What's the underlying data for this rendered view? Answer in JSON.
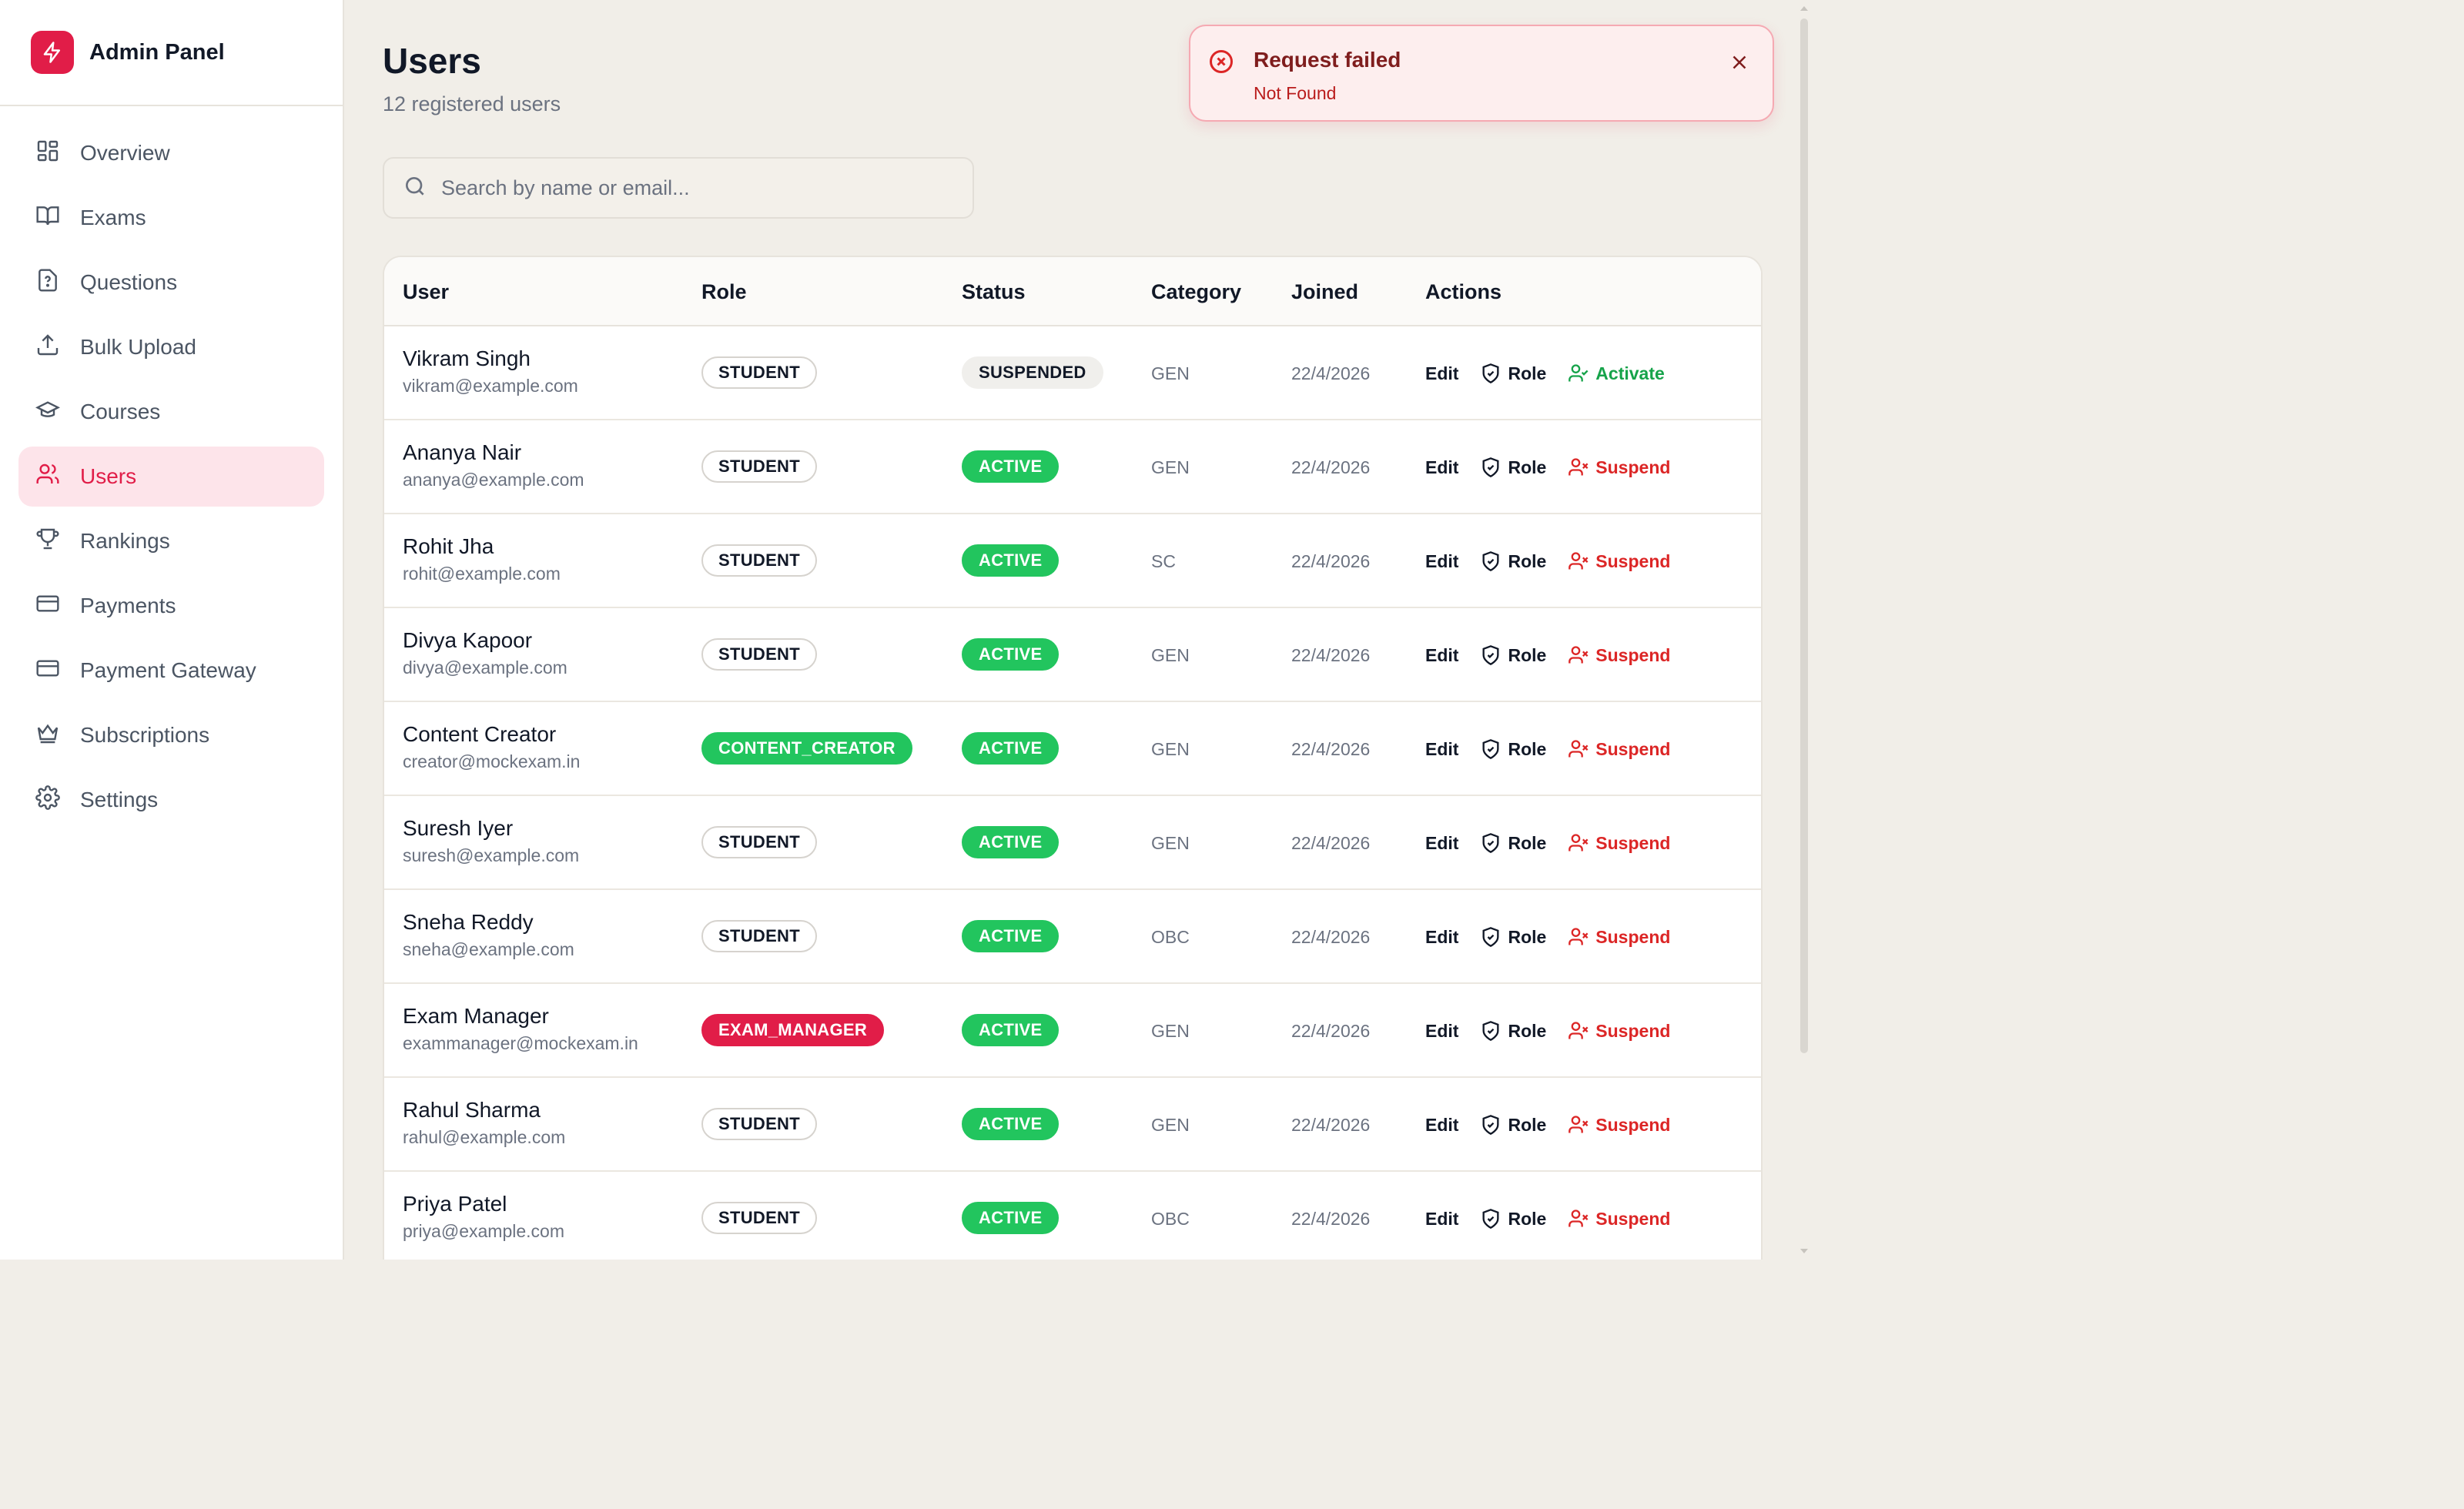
{
  "app": {
    "title": "Admin Panel"
  },
  "colors": {
    "accent": "#e11d48",
    "active_badge": "#22c55e",
    "suspend": "#dc2626",
    "activate": "#16a34a",
    "background": "#f1eee8"
  },
  "sidebar": {
    "items": [
      {
        "label": "Overview",
        "icon": "layout-grid-icon"
      },
      {
        "label": "Exams",
        "icon": "book-open-icon"
      },
      {
        "label": "Questions",
        "icon": "file-question-icon"
      },
      {
        "label": "Bulk Upload",
        "icon": "upload-icon"
      },
      {
        "label": "Courses",
        "icon": "graduation-cap-icon"
      },
      {
        "label": "Users",
        "icon": "users-icon",
        "active": true
      },
      {
        "label": "Rankings",
        "icon": "trophy-icon"
      },
      {
        "label": "Payments",
        "icon": "credit-card-icon"
      },
      {
        "label": "Payment Gateway",
        "icon": "credit-card-icon"
      },
      {
        "label": "Subscriptions",
        "icon": "crown-icon"
      },
      {
        "label": "Settings",
        "icon": "gear-icon"
      }
    ]
  },
  "page": {
    "title": "Users",
    "subtitle": "12 registered users"
  },
  "search": {
    "placeholder": "Search by name or email..."
  },
  "table": {
    "headers": {
      "user": "User",
      "role": "Role",
      "status": "Status",
      "category": "Category",
      "joined": "Joined",
      "actions": "Actions"
    },
    "rows": [
      {
        "name": "Vikram Singh",
        "email": "vikram@example.com",
        "role": "STUDENT",
        "role_style": "outline",
        "status": "SUSPENDED",
        "status_style": "grey",
        "category": "GEN",
        "joined": "22/4/2026",
        "edit": "Edit",
        "role_action": "Role",
        "toggle": "Activate",
        "toggle_style": "activate"
      },
      {
        "name": "Ananya Nair",
        "email": "ananya@example.com",
        "role": "STUDENT",
        "role_style": "outline",
        "status": "ACTIVE",
        "status_style": "green",
        "category": "GEN",
        "joined": "22/4/2026",
        "edit": "Edit",
        "role_action": "Role",
        "toggle": "Suspend",
        "toggle_style": "suspend"
      },
      {
        "name": "Rohit Jha",
        "email": "rohit@example.com",
        "role": "STUDENT",
        "role_style": "outline",
        "status": "ACTIVE",
        "status_style": "green",
        "category": "SC",
        "joined": "22/4/2026",
        "edit": "Edit",
        "role_action": "Role",
        "toggle": "Suspend",
        "toggle_style": "suspend"
      },
      {
        "name": "Divya Kapoor",
        "email": "divya@example.com",
        "role": "STUDENT",
        "role_style": "outline",
        "status": "ACTIVE",
        "status_style": "green",
        "category": "GEN",
        "joined": "22/4/2026",
        "edit": "Edit",
        "role_action": "Role",
        "toggle": "Suspend",
        "toggle_style": "suspend"
      },
      {
        "name": "Content Creator",
        "email": "creator@mockexam.in",
        "role": "CONTENT_CREATOR",
        "role_style": "green",
        "status": "ACTIVE",
        "status_style": "green",
        "category": "GEN",
        "joined": "22/4/2026",
        "edit": "Edit",
        "role_action": "Role",
        "toggle": "Suspend",
        "toggle_style": "suspend"
      },
      {
        "name": "Suresh Iyer",
        "email": "suresh@example.com",
        "role": "STUDENT",
        "role_style": "outline",
        "status": "ACTIVE",
        "status_style": "green",
        "category": "GEN",
        "joined": "22/4/2026",
        "edit": "Edit",
        "role_action": "Role",
        "toggle": "Suspend",
        "toggle_style": "suspend"
      },
      {
        "name": "Sneha Reddy",
        "email": "sneha@example.com",
        "role": "STUDENT",
        "role_style": "outline",
        "status": "ACTIVE",
        "status_style": "green",
        "category": "OBC",
        "joined": "22/4/2026",
        "edit": "Edit",
        "role_action": "Role",
        "toggle": "Suspend",
        "toggle_style": "suspend"
      },
      {
        "name": "Exam Manager",
        "email": "exammanager@mockexam.in",
        "role": "EXAM_MANAGER",
        "role_style": "red",
        "status": "ACTIVE",
        "status_style": "green",
        "category": "GEN",
        "joined": "22/4/2026",
        "edit": "Edit",
        "role_action": "Role",
        "toggle": "Suspend",
        "toggle_style": "suspend"
      },
      {
        "name": "Rahul Sharma",
        "email": "rahul@example.com",
        "role": "STUDENT",
        "role_style": "outline",
        "status": "ACTIVE",
        "status_style": "green",
        "category": "GEN",
        "joined": "22/4/2026",
        "edit": "Edit",
        "role_action": "Role",
        "toggle": "Suspend",
        "toggle_style": "suspend"
      },
      {
        "name": "Priya Patel",
        "email": "priya@example.com",
        "role": "STUDENT",
        "role_style": "outline",
        "status": "ACTIVE",
        "status_style": "green",
        "category": "OBC",
        "joined": "22/4/2026",
        "edit": "Edit",
        "role_action": "Role",
        "toggle": "Suspend",
        "toggle_style": "suspend"
      }
    ]
  },
  "toast": {
    "title": "Request failed",
    "description": "Not Found",
    "icon": "x-circle-icon"
  }
}
